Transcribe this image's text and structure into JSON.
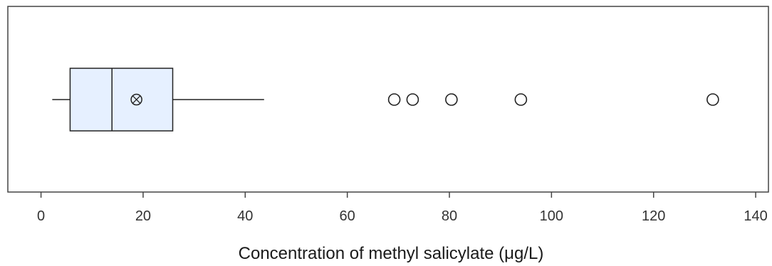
{
  "chart_data": {
    "type": "box",
    "orientation": "horizontal",
    "title": "",
    "xlabel": "Concentration of methyl salicylate (μg/L)",
    "ylabel": "",
    "xlim": [
      -6.5,
      142.5
    ],
    "xticks": [
      0,
      20,
      40,
      60,
      80,
      100,
      120,
      140
    ],
    "xtick_labels": [
      "0",
      "20",
      "40",
      "60",
      "80",
      "100",
      "120",
      "140"
    ],
    "grid": false,
    "legend": "none",
    "box": {
      "whisker_low": 2.2,
      "q1": 5.7,
      "median": 13.9,
      "q3": 25.8,
      "whisker_high": 43.7,
      "mean": 18.7
    },
    "outliers": [
      69.2,
      72.8,
      80.4,
      94.0,
      131.6
    ],
    "colors": {
      "box_fill": "#e6f0ff",
      "box_stroke": "#222222",
      "frame": "#444444"
    }
  }
}
